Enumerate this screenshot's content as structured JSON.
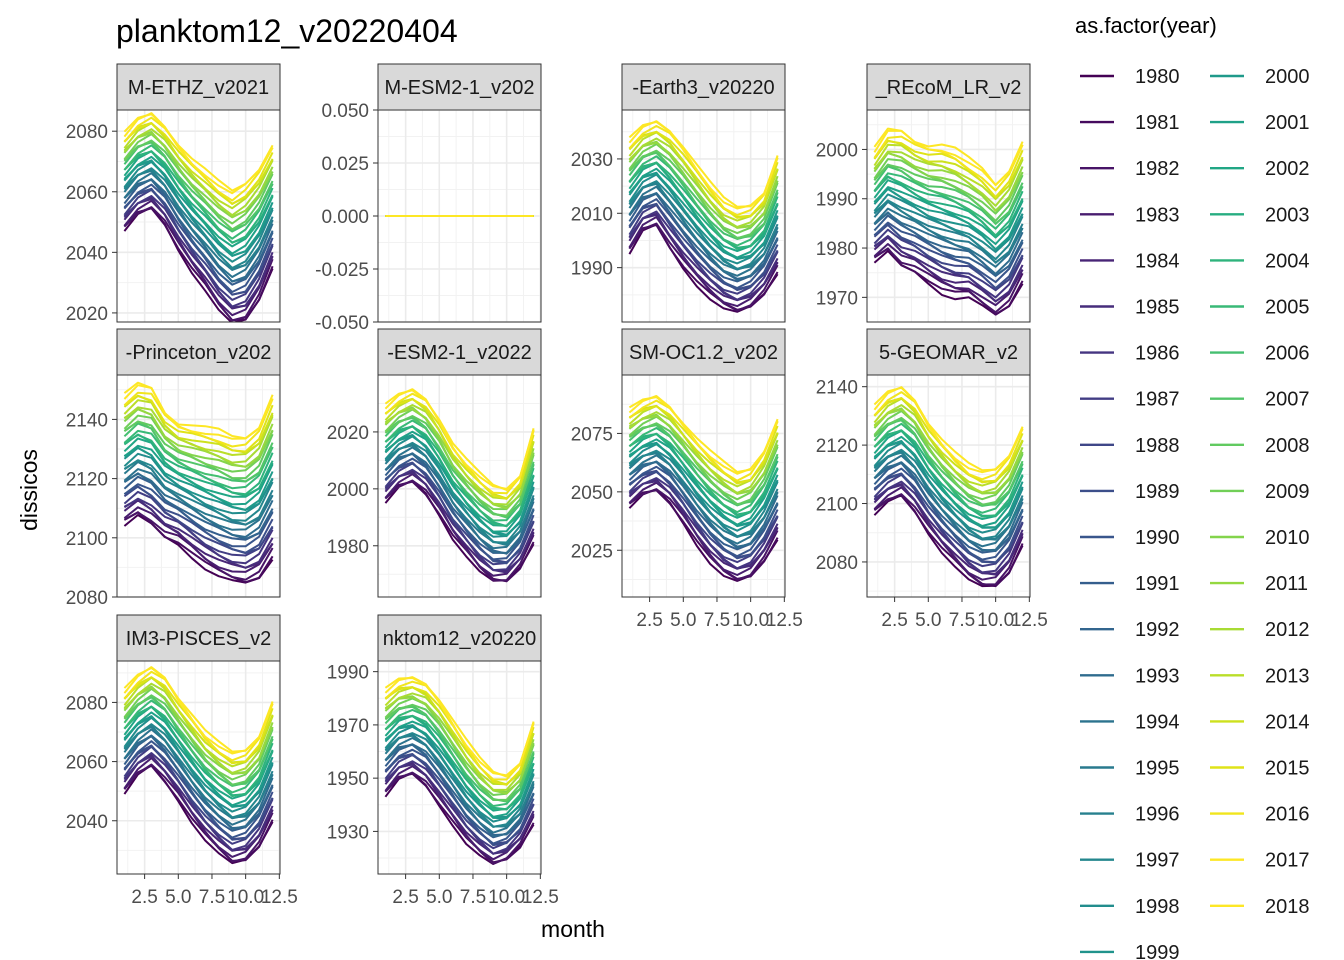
{
  "title": "planktom12_v20220404",
  "x_axis_label": "month",
  "y_axis_label": "dissicos",
  "legend": {
    "title": "as.factor(year)",
    "years": [
      "1980",
      "1981",
      "1982",
      "1983",
      "1984",
      "1985",
      "1986",
      "1987",
      "1988",
      "1989",
      "1990",
      "1991",
      "1992",
      "1993",
      "1994",
      "1995",
      "1996",
      "1997",
      "1998",
      "1999",
      "2000",
      "2001",
      "2002",
      "2003",
      "2004",
      "2005",
      "2006",
      "2007",
      "2008",
      "2009",
      "2010",
      "2011",
      "2012",
      "2013",
      "2014",
      "2015",
      "2016",
      "2017",
      "2018"
    ],
    "colors": [
      "#440154",
      "#460B5E",
      "#481467",
      "#481D6F",
      "#482576",
      "#472D7B",
      "#453581",
      "#423D84",
      "#3F4788",
      "#3C4F8A",
      "#39568C",
      "#355E8D",
      "#32658E",
      "#2F6C8E",
      "#2C738E",
      "#297A8E",
      "#27808E",
      "#24878E",
      "#228D8D",
      "#20938C",
      "#1F9A8A",
      "#1FA188",
      "#21A685",
      "#27AD81",
      "#2EB37C",
      "#38B977",
      "#45BF70",
      "#52C569",
      "#61CA60",
      "#71CF57",
      "#83D44C",
      "#95D840",
      "#A8DB34",
      "#BADE28",
      "#CDE11D",
      "#DFE318",
      "#F1E51D",
      "#FDE725",
      "#FDE725"
    ]
  },
  "panels": [
    {
      "strip": "M-ETHZ_v2021",
      "y_ticks": [
        "2020",
        "2040",
        "2060",
        "2080"
      ]
    },
    {
      "strip": "M-ESM2-1_v202",
      "y_ticks": [
        "-0.050",
        "-0.025",
        "0.000",
        "0.025",
        "0.050"
      ]
    },
    {
      "strip": "-Earth3_v20220",
      "y_ticks": [
        "1990",
        "2010",
        "2030"
      ]
    },
    {
      "strip": "_REcoM_LR_v2",
      "y_ticks": [
        "1970",
        "1980",
        "1990",
        "2000"
      ]
    },
    {
      "strip": "-Princeton_v202",
      "y_ticks": [
        "2080",
        "2100",
        "2120",
        "2140"
      ]
    },
    {
      "strip": "-ESM2-1_v2022",
      "y_ticks": [
        "1980",
        "2000",
        "2020"
      ]
    },
    {
      "strip": "SM-OC1.2_v202",
      "y_ticks": [
        "2025",
        "2050",
        "2075"
      ]
    },
    {
      "strip": "5-GEOMAR_v2",
      "y_ticks": [
        "2080",
        "2100",
        "2120",
        "2140"
      ]
    },
    {
      "strip": "IM3-PISCES_v2",
      "y_ticks": [
        "2040",
        "2060",
        "2080"
      ]
    },
    {
      "strip": "nktom12_v20220",
      "y_ticks": [
        "1930",
        "1950",
        "1970",
        "1990"
      ]
    }
  ],
  "x_tick_labels": [
    "2.5",
    "5.0",
    "7.5",
    "10.0",
    "12.5"
  ],
  "chart_data": [
    {
      "type": "line",
      "panel": "M-ETHZ_v2021",
      "x": [
        1,
        2,
        3,
        4,
        5,
        6,
        7,
        8,
        9,
        10,
        11,
        12
      ],
      "first_year": [
        2047,
        2052,
        2054,
        2049,
        2041,
        2034,
        2028,
        2021,
        2016,
        2017,
        2024,
        2035
      ],
      "last_year": [
        2079,
        2084,
        2086,
        2082,
        2076,
        2071,
        2067,
        2063,
        2060,
        2063,
        2068,
        2076
      ],
      "ylim": [
        2017,
        2087
      ]
    },
    {
      "type": "line",
      "panel": "M-ESM2-1_v202",
      "x": [
        1,
        2,
        3,
        4,
        5,
        6,
        7,
        8,
        9,
        10,
        11,
        12
      ],
      "first_year": [
        0,
        0,
        0,
        0,
        0,
        0,
        0,
        0,
        0,
        0,
        0,
        0
      ],
      "last_year": [
        0,
        0,
        0,
        0,
        0,
        0,
        0,
        0,
        0,
        0,
        0,
        0
      ],
      "ylim": [
        -0.05,
        0.05
      ]
    },
    {
      "type": "line",
      "panel": "-Earth3_v20220",
      "x": [
        1,
        2,
        3,
        4,
        5,
        6,
        7,
        8,
        9,
        10,
        11,
        12
      ],
      "first_year": [
        1995,
        2003,
        2005,
        1997,
        1990,
        1984,
        1979,
        1975,
        1973,
        1975,
        1980,
        1988
      ],
      "last_year": [
        2037,
        2042,
        2044,
        2041,
        2035,
        2028,
        2021,
        2015,
        2012,
        2013,
        2018,
        2032
      ],
      "ylim": [
        1970,
        2048
      ]
    },
    {
      "type": "line",
      "panel": "_REcoM_LR_v2",
      "x": [
        1,
        2,
        3,
        4,
        5,
        6,
        7,
        8,
        9,
        10,
        11,
        12
      ],
      "first_year": [
        1977,
        1979,
        1976,
        1975,
        1973,
        1971,
        1970,
        1970,
        1968,
        1966,
        1968,
        1973
      ],
      "last_year": [
        2000,
        2004,
        2004,
        2002,
        2001,
        2001,
        2000,
        1998,
        1996,
        1993,
        1996,
        2002
      ],
      "ylim": [
        1965,
        2008
      ]
    },
    {
      "type": "line",
      "panel": "-Princeton_v202",
      "x": [
        1,
        2,
        3,
        4,
        5,
        6,
        7,
        8,
        9,
        10,
        11,
        12
      ],
      "first_year": [
        2104,
        2107,
        2104,
        2100,
        2098,
        2094,
        2090,
        2087,
        2085,
        2084,
        2086,
        2093
      ],
      "last_year": [
        2148,
        2152,
        2151,
        2143,
        2139,
        2138,
        2137,
        2136,
        2134,
        2134,
        2138,
        2149
      ],
      "ylim": [
        2080,
        2155
      ]
    },
    {
      "type": "line",
      "panel": "-ESM2-1_v2022",
      "x": [
        1,
        2,
        3,
        4,
        5,
        6,
        7,
        8,
        9,
        10,
        11,
        12
      ],
      "first_year": [
        1995,
        2000,
        2002,
        1998,
        1991,
        1983,
        1977,
        1971,
        1967,
        1967,
        1972,
        1981
      ],
      "last_year": [
        2029,
        2033,
        2035,
        2032,
        2025,
        2016,
        2010,
        2005,
        2001,
        2000,
        2005,
        2022
      ],
      "ylim": [
        1962,
        2040
      ]
    },
    {
      "type": "line",
      "panel": "SM-OC1.2_v202",
      "x": [
        1,
        2,
        3,
        4,
        5,
        6,
        7,
        8,
        9,
        10,
        11,
        12
      ],
      "first_year": [
        2043,
        2048,
        2050,
        2045,
        2037,
        2028,
        2020,
        2014,
        2011,
        2013,
        2020,
        2030
      ],
      "last_year": [
        2085,
        2089,
        2091,
        2087,
        2080,
        2073,
        2067,
        2062,
        2058,
        2060,
        2068,
        2082
      ],
      "ylim": [
        2005,
        2100
      ]
    },
    {
      "type": "line",
      "panel": "5-GEOMAR_v2",
      "x": [
        1,
        2,
        3,
        4,
        5,
        6,
        7,
        8,
        9,
        10,
        11,
        12
      ],
      "first_year": [
        2096,
        2100,
        2102,
        2097,
        2090,
        2084,
        2079,
        2074,
        2071,
        2071,
        2076,
        2086
      ],
      "last_year": [
        2133,
        2138,
        2140,
        2136,
        2128,
        2122,
        2117,
        2113,
        2111,
        2112,
        2117,
        2127
      ],
      "ylim": [
        2068,
        2144
      ]
    },
    {
      "type": "line",
      "panel": "IM3-PISCES_v2",
      "x": [
        1,
        2,
        3,
        4,
        5,
        6,
        7,
        8,
        9,
        10,
        11,
        12
      ],
      "first_year": [
        2049,
        2055,
        2058,
        2053,
        2047,
        2040,
        2034,
        2029,
        2025,
        2026,
        2031,
        2040
      ],
      "last_year": [
        2084,
        2089,
        2092,
        2089,
        2082,
        2076,
        2070,
        2066,
        2063,
        2064,
        2069,
        2081
      ],
      "ylim": [
        2022,
        2094
      ]
    },
    {
      "type": "line",
      "panel": "nktom12_v20220",
      "x": [
        1,
        2,
        3,
        4,
        5,
        6,
        7,
        8,
        9,
        10,
        11,
        12
      ],
      "first_year": [
        1943,
        1949,
        1951,
        1947,
        1940,
        1933,
        1926,
        1921,
        1917,
        1919,
        1924,
        1933
      ],
      "last_year": [
        1983,
        1987,
        1988,
        1986,
        1980,
        1972,
        1964,
        1957,
        1952,
        1951,
        1956,
        1972
      ],
      "ylim": [
        1914,
        1994
      ]
    }
  ]
}
